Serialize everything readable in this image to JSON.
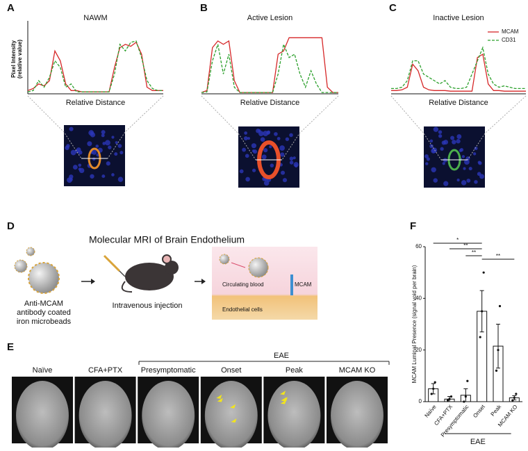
{
  "panel_labels": [
    "A",
    "B",
    "C",
    "D",
    "E",
    "F"
  ],
  "chart_data": [
    {
      "type": "line",
      "title": "NAWM",
      "x_label": "Relative Distance",
      "y_label": [
        "Pixel Intensity",
        "(relative value)"
      ],
      "ylim": [
        0,
        1
      ],
      "xlim": [
        0,
        100
      ],
      "x": [
        0,
        4,
        8,
        12,
        16,
        20,
        24,
        28,
        32,
        36,
        40,
        44,
        48,
        52,
        56,
        60,
        64,
        68,
        72,
        76,
        80,
        84,
        88,
        92,
        96,
        100
      ],
      "series": [
        {
          "name": "MCAM",
          "color": "#d62728",
          "dash": false,
          "values": [
            0.05,
            0.08,
            0.15,
            0.12,
            0.2,
            0.65,
            0.5,
            0.15,
            0.05,
            0.05,
            0.03,
            0.03,
            0.03,
            0.03,
            0.03,
            0.03,
            0.4,
            0.7,
            0.75,
            0.72,
            0.78,
            0.6,
            0.1,
            0.05,
            0.05,
            0.05
          ]
        },
        {
          "name": "CD31",
          "color": "#2ca02c",
          "dash": true,
          "values": [
            0.03,
            0.05,
            0.2,
            0.1,
            0.25,
            0.5,
            0.4,
            0.1,
            0.15,
            0.03,
            0.03,
            0.03,
            0.03,
            0.03,
            0.03,
            0.03,
            0.3,
            0.75,
            0.65,
            0.78,
            0.8,
            0.55,
            0.2,
            0.08,
            0.05,
            0.05
          ]
        }
      ],
      "legend": false
    },
    {
      "type": "line",
      "title": "Active Lesion",
      "x_label": "Relative Distance",
      "ylim": [
        0,
        1
      ],
      "xlim": [
        0,
        100
      ],
      "x": [
        0,
        4,
        8,
        12,
        16,
        20,
        24,
        28,
        32,
        36,
        40,
        44,
        48,
        52,
        56,
        60,
        64,
        68,
        72,
        76,
        80,
        84,
        88,
        92,
        96,
        100
      ],
      "series": [
        {
          "name": "MCAM",
          "color": "#d62728",
          "dash": false,
          "values": [
            0.02,
            0.05,
            0.7,
            0.8,
            0.75,
            0.8,
            0.2,
            0.02,
            0.02,
            0.02,
            0.02,
            0.02,
            0.02,
            0.02,
            0.6,
            0.65,
            0.85,
            0.85,
            0.85,
            0.85,
            0.85,
            0.85,
            0.85,
            0.1,
            0.02,
            0.02
          ]
        },
        {
          "name": "CD31",
          "color": "#2ca02c",
          "dash": true,
          "values": [
            0.02,
            0.03,
            0.5,
            0.75,
            0.3,
            0.6,
            0.1,
            0.02,
            0.02,
            0.02,
            0.02,
            0.02,
            0.02,
            0.02,
            0.3,
            0.75,
            0.55,
            0.6,
            0.3,
            0.1,
            0.35,
            0.15,
            0.02,
            0.02,
            0.02,
            0.02
          ]
        }
      ],
      "legend": false
    },
    {
      "type": "line",
      "title": "Inactive Lesion",
      "x_label": "Relative Distance",
      "ylim": [
        0,
        1
      ],
      "xlim": [
        0,
        100
      ],
      "x": [
        0,
        4,
        8,
        12,
        16,
        20,
        24,
        28,
        32,
        36,
        40,
        44,
        48,
        52,
        56,
        60,
        64,
        68,
        72,
        76,
        80,
        84,
        88,
        92,
        96,
        100
      ],
      "series": [
        {
          "name": "MCAM",
          "color": "#d62728",
          "dash": false,
          "values": [
            0.05,
            0.05,
            0.06,
            0.1,
            0.45,
            0.35,
            0.1,
            0.06,
            0.05,
            0.05,
            0.05,
            0.04,
            0.04,
            0.04,
            0.04,
            0.04,
            0.55,
            0.6,
            0.15,
            0.05,
            0.05,
            0.04,
            0.04,
            0.04,
            0.04,
            0.04
          ]
        },
        {
          "name": "CD31",
          "color": "#2ca02c",
          "dash": true,
          "values": [
            0.08,
            0.08,
            0.1,
            0.2,
            0.5,
            0.5,
            0.3,
            0.25,
            0.2,
            0.15,
            0.2,
            0.1,
            0.08,
            0.08,
            0.1,
            0.3,
            0.5,
            0.7,
            0.3,
            0.15,
            0.1,
            0.12,
            0.1,
            0.08,
            0.08,
            0.08
          ]
        }
      ],
      "legend": true,
      "legend_corner": "top-right"
    },
    {
      "type": "bar",
      "y_label": "MCAM Luminal Presence (signal void per brain)",
      "categories": [
        "Naïve",
        "CFA+PTX",
        "Presymptomatic",
        "Onset",
        "Peak",
        "MCAM KO"
      ],
      "values": [
        5,
        1,
        2.5,
        35,
        21.5,
        1.5
      ],
      "errors": [
        2,
        1,
        2.5,
        8,
        8.5,
        0.8
      ],
      "points": [
        [
          3,
          5,
          7.5
        ],
        [
          0.5,
          1,
          2
        ],
        [
          0,
          2,
          8
        ],
        [
          25,
          35,
          50
        ],
        [
          12,
          20,
          37
        ],
        [
          0.5,
          1.5,
          3
        ]
      ],
      "ylim": [
        0,
        60
      ],
      "yticks": [
        0,
        20,
        40,
        60
      ],
      "color": "#ffffff",
      "significance": [
        "*",
        "**",
        "**",
        "**"
      ],
      "group_label": "EAE"
    }
  ],
  "diagram": {
    "title": "Molecular MRI of Brain Endothelium",
    "bead_caption": [
      "Anti-MCAM",
      "antibody coated",
      "iron microbeads"
    ],
    "injection": "Intravenous injection",
    "blood": "Circulating blood",
    "mcam": "MCAM",
    "cells": "Endothelial cells"
  },
  "mri": {
    "group": "EAE",
    "labels": [
      "Naïve",
      "CFA+PTX",
      "Presymptomatic",
      "Onset",
      "Peak",
      "MCAM KO"
    ]
  }
}
